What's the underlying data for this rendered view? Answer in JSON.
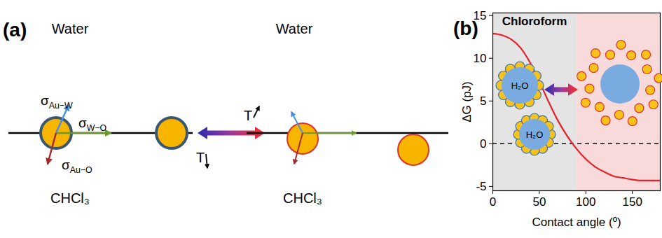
{
  "panel_a": {
    "panel_label": "(a)",
    "left_scene": {
      "top_phase": "Water",
      "bottom_phase": "CHCl₃"
    },
    "right_scene": {
      "top_phase": "Water",
      "bottom_phase": "CHCl₃"
    },
    "tensions": [
      {
        "symbol": "σ",
        "subscript": "Au−W"
      },
      {
        "symbol": "σ",
        "subscript": "W−O"
      },
      {
        "symbol": "σ",
        "subscript": "Au−O"
      }
    ],
    "temperature": [
      "T",
      "T"
    ]
  },
  "chart_data": {
    "type": "line",
    "panel_label": "(b)",
    "xlabel": "Contact angle (º)",
    "ylabel": "ΔG (pJ)",
    "annotations": [
      "Chloroform"
    ],
    "inset_labels": [
      "H₂O",
      "H₂O"
    ],
    "x": [
      0,
      10,
      20,
      30,
      40,
      50,
      60,
      70,
      80,
      90,
      100,
      110,
      120,
      130,
      140,
      150,
      160,
      170,
      180
    ],
    "values": [
      12.9,
      12.7,
      12.2,
      11.2,
      9.5,
      7.3,
      4.9,
      2.7,
      0.9,
      -0.6,
      -1.8,
      -2.7,
      -3.3,
      -3.8,
      -4.0,
      -4.2,
      -4.3,
      -4.3,
      -4.3
    ],
    "color": "#e8202a",
    "xlim": [
      0,
      180
    ],
    "ylim": [
      -5.5,
      15.3
    ],
    "xticks": [
      0,
      50,
      100,
      150
    ],
    "yticks": [
      -5,
      0,
      5,
      10,
      15
    ],
    "reference_line": 0,
    "regions": [
      {
        "x0": 0,
        "x1": 90,
        "color": "#e4e4e4"
      },
      {
        "x0": 90,
        "x1": 180,
        "color": "#f8dada"
      }
    ]
  }
}
